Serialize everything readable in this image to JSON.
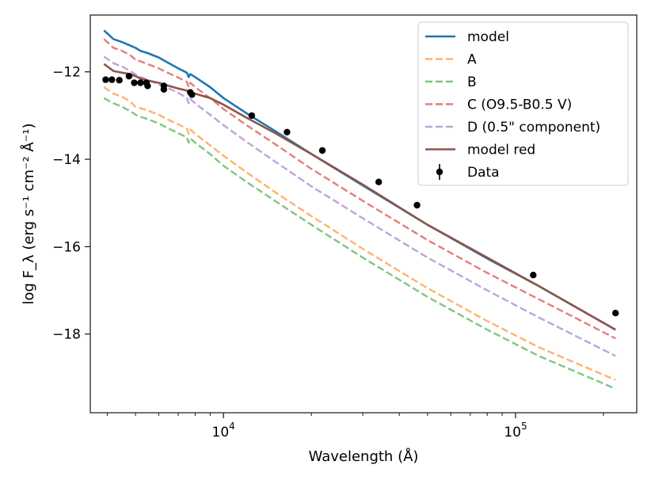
{
  "chart_data": {
    "type": "line",
    "xlabel": "Wavelength (Å)",
    "ylabel": "log F_λ (erg s⁻¹ cm⁻² Å⁻¹)",
    "xscale": "log",
    "xlim": [
      3500,
      260000
    ],
    "ylim": [
      -19.8,
      -10.7
    ],
    "x_ticks": [
      10000,
      100000
    ],
    "x_tick_labels": [
      "10",
      "10"
    ],
    "x_tick_label_exponents": [
      "4",
      "5"
    ],
    "y_ticks": [
      -12,
      -14,
      -16,
      -18
    ],
    "y_tick_labels": [
      "−12",
      "−14",
      "−16",
      "−18"
    ],
    "grid": false,
    "legend_position": "top-right",
    "series": [
      {
        "name": "model",
        "style": "solid",
        "color": "#1f77b4",
        "x": [
          3900,
          4200,
          4500,
          4800,
          5000,
          5200,
          5500,
          6000,
          6500,
          7000,
          7500,
          7600,
          7700,
          8000,
          9000,
          10000,
          12000,
          15000,
          20000,
          30000,
          50000,
          80000,
          120000,
          220000
        ],
        "y": [
          -11.05,
          -11.25,
          -11.32,
          -11.4,
          -11.45,
          -11.52,
          -11.57,
          -11.67,
          -11.8,
          -11.92,
          -12.02,
          -12.12,
          -12.05,
          -12.12,
          -12.35,
          -12.6,
          -12.95,
          -13.35,
          -13.88,
          -14.6,
          -15.5,
          -16.27,
          -16.9,
          -17.9
        ]
      },
      {
        "name": "A",
        "style": "dashed",
        "color": "#ff7f0e",
        "x": [
          3900,
          4200,
          4500,
          4800,
          5000,
          5200,
          5500,
          6000,
          6500,
          7000,
          7500,
          7600,
          7700,
          8000,
          9000,
          10000,
          12000,
          15000,
          20000,
          30000,
          50000,
          80000,
          120000,
          220000
        ],
        "y": [
          -12.35,
          -12.5,
          -12.57,
          -12.68,
          -12.8,
          -12.83,
          -12.88,
          -12.98,
          -13.1,
          -13.2,
          -13.3,
          -13.42,
          -13.32,
          -13.42,
          -13.68,
          -13.92,
          -14.3,
          -14.75,
          -15.3,
          -16.05,
          -16.95,
          -17.7,
          -18.3,
          -19.05
        ]
      },
      {
        "name": "B",
        "style": "dashed",
        "color": "#2ca02c",
        "x": [
          3900,
          4200,
          4500,
          4800,
          5000,
          5200,
          5500,
          6000,
          6500,
          7000,
          7500,
          7600,
          7700,
          8000,
          9000,
          10000,
          12000,
          15000,
          20000,
          30000,
          50000,
          80000,
          120000,
          220000
        ],
        "y": [
          -12.6,
          -12.72,
          -12.8,
          -12.9,
          -12.98,
          -13.03,
          -13.08,
          -13.18,
          -13.3,
          -13.4,
          -13.5,
          -13.62,
          -13.52,
          -13.62,
          -13.88,
          -14.15,
          -14.52,
          -14.95,
          -15.5,
          -16.25,
          -17.15,
          -17.9,
          -18.5,
          -19.25
        ]
      },
      {
        "name": "C (O9.5-B0.5 V)",
        "style": "dashed",
        "color": "#d62728",
        "x": [
          3900,
          4200,
          4500,
          4800,
          5000,
          5200,
          5500,
          6000,
          6500,
          7000,
          7500,
          7600,
          7700,
          8000,
          9000,
          10000,
          12000,
          15000,
          20000,
          30000,
          50000,
          80000,
          120000,
          220000
        ],
        "y": [
          -11.25,
          -11.45,
          -11.52,
          -11.62,
          -11.72,
          -11.76,
          -11.82,
          -11.92,
          -12.03,
          -12.13,
          -12.23,
          -12.35,
          -12.25,
          -12.35,
          -12.6,
          -12.85,
          -13.22,
          -13.65,
          -14.22,
          -14.95,
          -15.85,
          -16.6,
          -17.2,
          -18.1
        ]
      },
      {
        "name": "D (0.5\" component)",
        "style": "dashed",
        "color": "#9467bd",
        "x": [
          3900,
          4200,
          4500,
          4800,
          5000,
          5200,
          5500,
          6000,
          6500,
          7000,
          7500,
          7600,
          7700,
          8000,
          9000,
          10000,
          12000,
          15000,
          20000,
          30000,
          50000,
          80000,
          120000,
          220000
        ],
        "y": [
          -11.65,
          -11.8,
          -11.88,
          -11.98,
          -12.06,
          -12.12,
          -12.18,
          -12.28,
          -12.38,
          -12.48,
          -12.6,
          -12.72,
          -12.62,
          -12.72,
          -12.98,
          -13.22,
          -13.6,
          -14.05,
          -14.62,
          -15.35,
          -16.25,
          -17.0,
          -17.62,
          -18.5
        ]
      },
      {
        "name": "model red",
        "style": "solid",
        "color": "#8c564b",
        "x": [
          3900,
          4200,
          4500,
          4800,
          5000,
          5200,
          5500,
          6000,
          6500,
          7000,
          7500,
          7600,
          7700,
          8000,
          9000,
          10000,
          12000,
          15000,
          20000,
          30000,
          50000,
          80000,
          120000,
          220000
        ],
        "y": [
          -11.82,
          -11.98,
          -12.02,
          -12.05,
          -12.1,
          -12.15,
          -12.2,
          -12.25,
          -12.32,
          -12.38,
          -12.43,
          -12.47,
          -12.47,
          -12.5,
          -12.6,
          -12.75,
          -13.05,
          -13.4,
          -13.88,
          -14.58,
          -15.5,
          -16.25,
          -16.9,
          -17.9
        ]
      }
    ],
    "data_points": {
      "name": "Data",
      "color": "#000000",
      "x": [
        3950,
        4150,
        4400,
        4750,
        4950,
        5200,
        5450,
        5500,
        6250,
        6250,
        7700,
        7800,
        12500,
        16500,
        21800,
        34000,
        46000,
        115000,
        220000
      ],
      "y": [
        -12.18,
        -12.18,
        -12.19,
        -12.1,
        -12.25,
        -12.25,
        -12.25,
        -12.32,
        -12.32,
        -12.4,
        -12.47,
        -12.52,
        -13.0,
        -13.38,
        -13.8,
        -14.52,
        -15.05,
        -16.65,
        -17.52
      ]
    }
  }
}
